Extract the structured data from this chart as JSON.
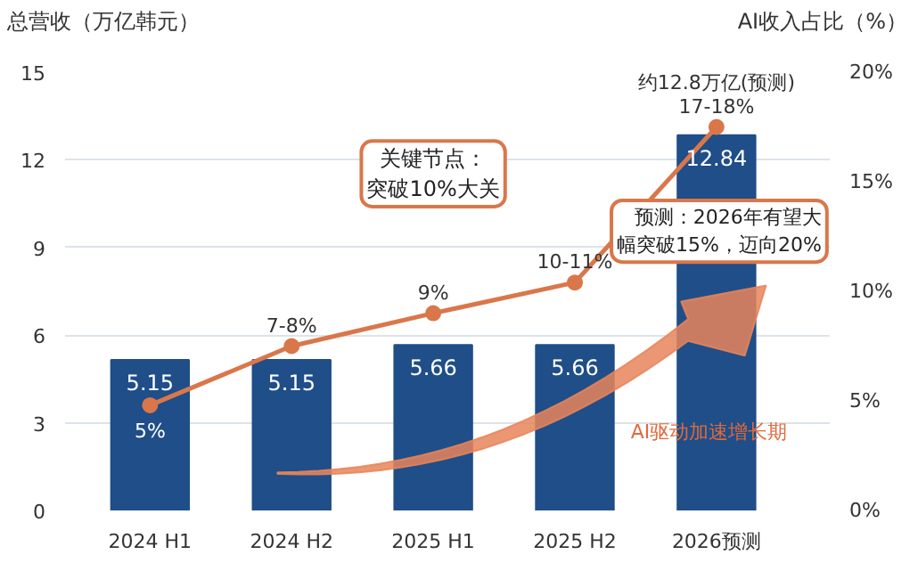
{
  "chart_data": {
    "type": "bar",
    "ylabel": "总营收（万亿韩元）",
    "y2label": "AI收入占比（%）",
    "categories": [
      "2024 H1",
      "2024 H2",
      "2025 H1",
      "2025 H2",
      "2026预测"
    ],
    "series": [
      {
        "color": "#1f4e88",
        "values": [
          5.15,
          5.15,
          5.66,
          5.66,
          12.84
        ],
        "data_labels": true
      },
      {
        "type": "line",
        "axis": "y2",
        "color": "#d9774b",
        "values": [
          4.8,
          7.5,
          9.0,
          10.4,
          17.5
        ],
        "value_labels": [
          "5%",
          "7-8%",
          "9%",
          "10-11%",
          "17-18%"
        ],
        "marker": "circle"
      }
    ],
    "ylim": [
      0,
      15
    ],
    "yticks": [
      0,
      3,
      6,
      9,
      12,
      15
    ],
    "y2lim": [
      0,
      20
    ],
    "y2ticks": [
      {
        "value": 0,
        "label": "0%"
      },
      {
        "value": 5,
        "label": "5%"
      },
      {
        "value": 10,
        "label": "10%"
      },
      {
        "value": 15,
        "label": "15%"
      },
      {
        "value": 20,
        "label": "20%"
      }
    ],
    "grid": "y",
    "annotations": [
      "约12.8万亿(预测)",
      "关键节点：突破10%大关",
      "预测：2026年有望大幅突破15%，迈向20%",
      "AI驱动加速增长期"
    ]
  }
}
